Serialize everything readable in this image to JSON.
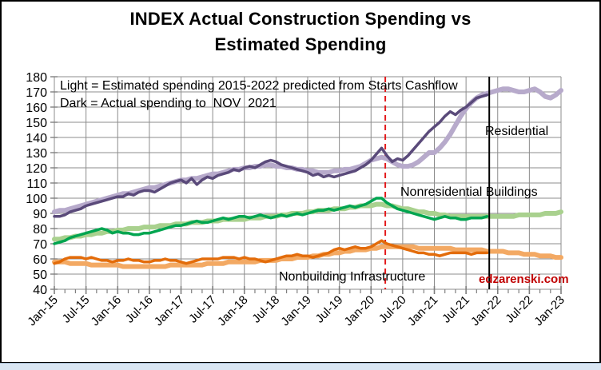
{
  "title": {
    "line1": "INDEX Actual Construction Spending vs",
    "line2": "Estimated Spending"
  },
  "legend_note": {
    "line1": "Light = Estimated spending 2015-2022 predicted from Starts Cashflow",
    "line2": "Dark = Actual spending to  NOV  2021"
  },
  "series_labels": {
    "residential": "Residential",
    "nonresidential": "Nonresidential Buildings",
    "nonbuilding": "Nonbuilding Infrastructure"
  },
  "watermark": {
    "text": "edzarenski.com",
    "color": "#c00000"
  },
  "chart_data": {
    "type": "line",
    "title": "INDEX Actual Construction Spending vs Estimated Spending",
    "x_tick_labels": [
      "Jan-15",
      "Jul-15",
      "Jan-16",
      "Jul-16",
      "Jan-17",
      "Jul-17",
      "Jan-18",
      "Jul-18",
      "Jan-19",
      "Jul-19",
      "Jan-20",
      "Jul-20",
      "Jan-21",
      "Jul-21",
      "Jan-22",
      "Jul-22",
      "Jan-23"
    ],
    "x_months_total": 96,
    "x_major_tick_every_months": 6,
    "x_minor_tick_every_months": 2,
    "ylim": [
      40,
      180
    ],
    "y_tick_step": 10,
    "grid": true,
    "grid_color": "#8c8c8c",
    "legend_position": "text labels inside plot",
    "series": [
      {
        "name": "Residential Estimated",
        "group": "Residential",
        "kind": "estimated",
        "color": "#b7aacb",
        "width": 6,
        "start_month": "Jan-15",
        "end_month": "Jan-23",
        "values": [
          91,
          92,
          92,
          93,
          94,
          95,
          96,
          97,
          98,
          99,
          100,
          101,
          102,
          103,
          103,
          104,
          105,
          106,
          107,
          107,
          108,
          109,
          110,
          111,
          112,
          112,
          113,
          113,
          114,
          115,
          116,
          116,
          117,
          118,
          119,
          119,
          120,
          120,
          121,
          121,
          122,
          122,
          121,
          121,
          120,
          120,
          119,
          119,
          118,
          118,
          117,
          117,
          117,
          118,
          118,
          119,
          119,
          120,
          121,
          123,
          125,
          126,
          127,
          126,
          124,
          122,
          121,
          121,
          122,
          124,
          127,
          130,
          130,
          133,
          137,
          142,
          148,
          154,
          159,
          163,
          166,
          168,
          169,
          170,
          171,
          172,
          172,
          171,
          170,
          170,
          171,
          172,
          170,
          167,
          166,
          168,
          171
        ]
      },
      {
        "name": "Nonresidential Buildings Estimated",
        "group": "Nonresidential Buildings",
        "kind": "estimated",
        "color": "#a9d18e",
        "width": 6,
        "start_month": "Jan-15",
        "end_month": "Jan-23",
        "values": [
          73,
          73,
          74,
          74,
          75,
          75,
          76,
          76,
          77,
          77,
          78,
          78,
          79,
          79,
          80,
          80,
          80,
          81,
          81,
          81,
          82,
          82,
          82,
          83,
          83,
          83,
          84,
          84,
          84,
          85,
          85,
          85,
          86,
          86,
          86,
          86,
          86,
          87,
          87,
          87,
          88,
          88,
          88,
          89,
          89,
          90,
          90,
          90,
          91,
          91,
          92,
          92,
          92,
          93,
          93,
          93,
          94,
          94,
          95,
          95,
          95,
          96,
          96,
          95,
          95,
          94,
          93,
          93,
          92,
          91,
          91,
          90,
          90,
          89,
          89,
          88,
          88,
          88,
          88,
          88,
          88,
          88,
          88,
          88,
          88,
          88,
          88,
          88,
          89,
          89,
          89,
          89,
          89,
          90,
          90,
          90,
          91
        ]
      },
      {
        "name": "Nonbuilding Infrastructure Estimated",
        "group": "Nonbuilding Infrastructure",
        "kind": "estimated",
        "color": "#f3a963",
        "width": 6,
        "start_month": "Jan-15",
        "end_month": "Jan-23",
        "values": [
          58,
          58,
          58,
          57,
          57,
          57,
          57,
          56,
          56,
          56,
          56,
          56,
          56,
          55,
          55,
          55,
          55,
          55,
          55,
          55,
          55,
          55,
          56,
          56,
          56,
          56,
          56,
          56,
          56,
          57,
          57,
          57,
          57,
          58,
          58,
          58,
          58,
          58,
          58,
          59,
          59,
          59,
          59,
          60,
          60,
          60,
          61,
          61,
          61,
          62,
          62,
          63,
          63,
          64,
          64,
          65,
          65,
          66,
          66,
          66,
          67,
          67,
          68,
          68,
          68,
          68,
          68,
          68,
          68,
          67,
          67,
          67,
          67,
          67,
          67,
          67,
          66,
          66,
          66,
          66,
          66,
          66,
          65,
          65,
          65,
          65,
          64,
          64,
          64,
          63,
          63,
          63,
          62,
          62,
          62,
          61,
          61
        ]
      },
      {
        "name": "Residential Actual",
        "group": "Residential",
        "kind": "actual",
        "color": "#5a4a7a",
        "width": 3.5,
        "start_month": "Jan-15",
        "end_month": "Nov-21",
        "values": [
          88,
          88,
          89,
          91,
          92,
          93,
          95,
          96,
          97,
          98,
          99,
          100,
          101,
          101,
          103,
          102,
          104,
          105,
          105,
          104,
          106,
          108,
          110,
          111,
          112,
          110,
          113,
          109,
          112,
          114,
          113,
          115,
          116,
          117,
          119,
          118,
          120,
          121,
          120,
          122,
          124,
          125,
          124,
          122,
          121,
          120,
          119,
          118,
          117,
          115,
          116,
          114,
          115,
          114,
          115,
          116,
          117,
          118,
          120,
          122,
          125,
          129,
          133,
          128,
          124,
          126,
          125,
          128,
          132,
          136,
          140,
          144,
          147,
          150,
          154,
          157,
          155,
          158,
          160,
          163,
          166,
          167,
          168
        ]
      },
      {
        "name": "Nonresidential Buildings Actual",
        "group": "Nonresidential Buildings",
        "kind": "actual",
        "color": "#00a550",
        "width": 3.5,
        "start_month": "Jan-15",
        "end_month": "Nov-21",
        "values": [
          70,
          71,
          72,
          74,
          75,
          76,
          77,
          78,
          79,
          80,
          79,
          77,
          78,
          77,
          77,
          76,
          76,
          77,
          77,
          78,
          79,
          80,
          81,
          82,
          82,
          83,
          84,
          85,
          84,
          84,
          85,
          86,
          87,
          86,
          87,
          88,
          88,
          87,
          88,
          89,
          88,
          87,
          88,
          89,
          88,
          89,
          90,
          89,
          90,
          91,
          92,
          92,
          93,
          92,
          93,
          94,
          95,
          94,
          95,
          96,
          98,
          100,
          100,
          97,
          95,
          93,
          92,
          91,
          90,
          89,
          88,
          87,
          86,
          87,
          88,
          87,
          87,
          86,
          86,
          87,
          87,
          87,
          88
        ]
      },
      {
        "name": "Nonbuilding Infrastructure Actual",
        "group": "Nonbuilding Infrastructure",
        "kind": "actual",
        "color": "#e36c0a",
        "width": 3.5,
        "start_month": "Jan-15",
        "end_month": "Nov-21",
        "values": [
          57,
          58,
          60,
          61,
          61,
          61,
          60,
          61,
          60,
          59,
          59,
          58,
          59,
          59,
          60,
          59,
          59,
          58,
          58,
          59,
          59,
          60,
          59,
          59,
          58,
          57,
          58,
          59,
          60,
          60,
          60,
          60,
          61,
          61,
          61,
          60,
          61,
          60,
          60,
          59,
          58,
          59,
          60,
          61,
          62,
          62,
          63,
          62,
          62,
          61,
          62,
          63,
          64,
          66,
          67,
          66,
          67,
          68,
          67,
          67,
          68,
          70,
          72,
          70,
          69,
          68,
          67,
          66,
          65,
          64,
          64,
          63,
          63,
          62,
          63,
          64,
          64,
          64,
          64,
          63,
          64,
          64,
          64
        ]
      }
    ],
    "reference_lines": [
      {
        "name": "red-dashed-line",
        "month_index": 62.7,
        "approx_date": "Mar-20",
        "color": "#e31a1c",
        "style": "dashed",
        "width": 2,
        "layer": "below-series"
      },
      {
        "name": "black-solid-line",
        "month_index": 82.4,
        "approx_date": "Nov-21",
        "color": "#000000",
        "style": "solid",
        "width": 2,
        "layer": "above-series"
      }
    ]
  }
}
